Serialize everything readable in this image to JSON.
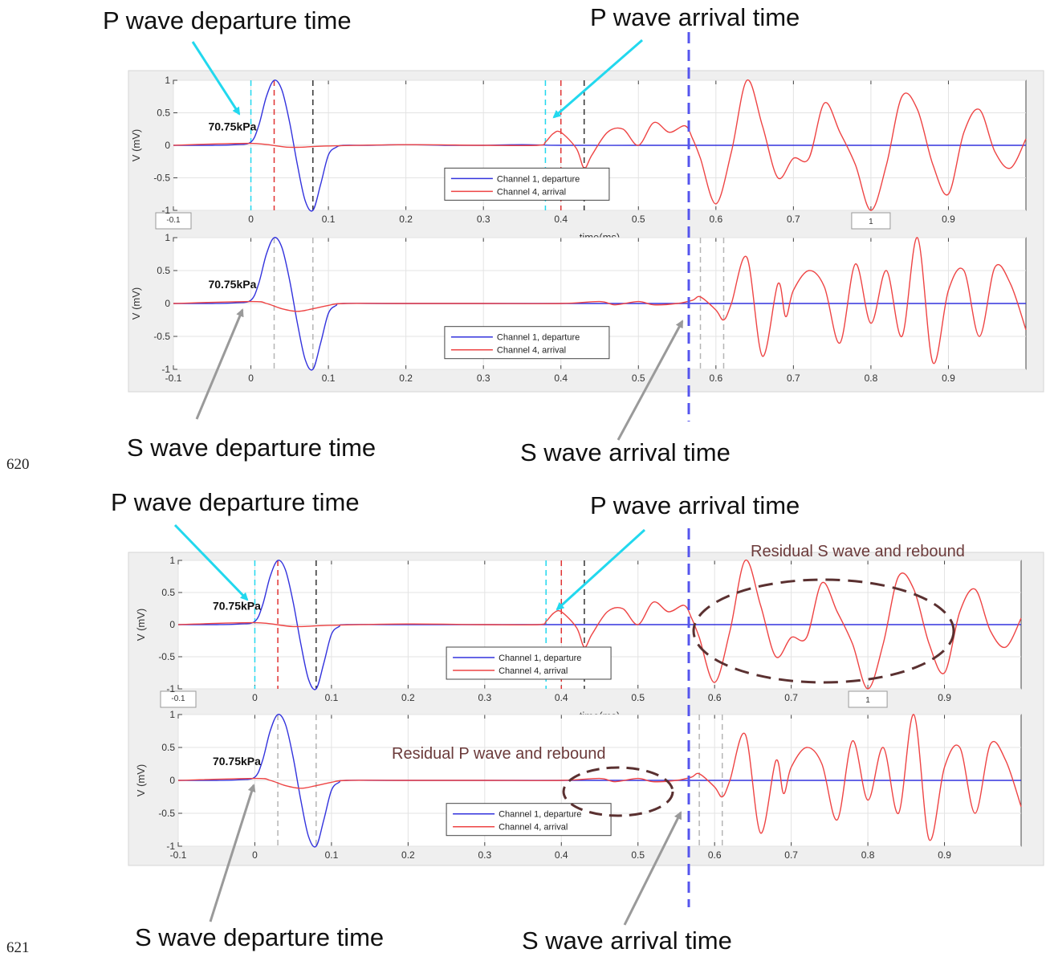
{
  "annotations": {
    "top": {
      "p_departure": "P wave departure time",
      "p_arrival": "P wave arrival time",
      "s_departure": "S wave departure time",
      "s_arrival": "S wave arrival time"
    },
    "bottom": {
      "p_departure": "P wave departure time",
      "p_arrival": "P wave arrival time",
      "s_departure": "S wave departure time",
      "s_arrival": "S wave arrival time",
      "residual_s": "Residual S wave and rebound",
      "residual_p": "Residual P wave and rebound"
    },
    "line_numbers": [
      "620",
      "621"
    ]
  },
  "colors": {
    "departure": "#3333dd",
    "arrival": "#ee4444",
    "cyan_arrow": "#22d8ee",
    "gray_arrow": "#9a9a9a",
    "vertical_marker": "#5555ee",
    "ellipse": "#5a3030"
  },
  "chart_data": [
    {
      "type": "line",
      "panel": "top-1",
      "ylabel": "V (mV)",
      "xlabel": "time(ms)",
      "pressure_label": "70.75kPa",
      "xlim": [
        -0.1,
        1.0
      ],
      "ylim": [
        -1,
        1
      ],
      "xticks": [
        "-0.1",
        "0",
        "0.1",
        "0.2",
        "0.3",
        "0.4",
        "0.5",
        "0.6",
        "0.7",
        "0.8",
        "0.9"
      ],
      "yticks": [
        "-1",
        "-0.5",
        "0",
        "0.5",
        "1"
      ],
      "boxed_ticks": [
        "-0.1",
        "1"
      ],
      "legend": [
        "Channel 1, departure",
        "Channel 4, arrival"
      ],
      "markers": {
        "cyan": [
          0.0,
          0.38
        ],
        "red": [
          0.03,
          0.4
        ],
        "black": [
          0.08,
          0.43
        ]
      },
      "series": [
        {
          "name": "Channel 1, departure",
          "x": [
            -0.1,
            -0.05,
            -0.02,
            0,
            0.01,
            0.02,
            0.03,
            0.04,
            0.05,
            0.06,
            0.07,
            0.08,
            0.09,
            0.1,
            0.11,
            0.12,
            0.15,
            0.2,
            0.25,
            0.3,
            0.35,
            0.4,
            0.5,
            0.6,
            0.7,
            0.8,
            0.9,
            1.0
          ],
          "y": [
            0,
            0,
            0.01,
            0.05,
            0.3,
            0.75,
            1.0,
            0.85,
            0.35,
            -0.3,
            -0.85,
            -1.0,
            -0.6,
            -0.15,
            -0.03,
            0.0,
            0.0,
            0.01,
            0.0,
            0.0,
            0.01,
            0,
            0,
            0,
            0,
            0,
            0,
            0
          ]
        },
        {
          "name": "Channel 4, arrival",
          "x": [
            -0.1,
            0,
            0.05,
            0.1,
            0.2,
            0.3,
            0.37,
            0.38,
            0.39,
            0.4,
            0.42,
            0.43,
            0.44,
            0.46,
            0.48,
            0.5,
            0.52,
            0.54,
            0.56,
            0.57,
            0.58,
            0.6,
            0.62,
            0.64,
            0.66,
            0.68,
            0.7,
            0.72,
            0.74,
            0.76,
            0.78,
            0.8,
            0.82,
            0.84,
            0.86,
            0.88,
            0.9,
            0.92,
            0.94,
            0.96,
            0.98,
            1.0
          ],
          "y": [
            0,
            0.03,
            -0.03,
            -0.01,
            0.01,
            0.0,
            0.0,
            0.05,
            0.18,
            0.2,
            -0.05,
            -0.35,
            -0.15,
            0.2,
            0.25,
            0.0,
            0.35,
            0.2,
            0.3,
            0.1,
            -0.2,
            -0.9,
            -0.1,
            1.0,
            0.3,
            -0.5,
            -0.2,
            -0.2,
            0.65,
            0.2,
            -0.3,
            -1.0,
            -0.3,
            0.75,
            0.55,
            -0.3,
            -0.75,
            0.2,
            0.55,
            -0.1,
            -0.35,
            0.1
          ]
        }
      ]
    },
    {
      "type": "line",
      "panel": "top-2",
      "ylabel": "V (mV)",
      "pressure_label": "70.75kPa",
      "xlim": [
        -0.1,
        1.0
      ],
      "ylim": [
        -1,
        1
      ],
      "xticks": [
        "-0.1",
        "0",
        "0.1",
        "0.2",
        "0.3",
        "0.4",
        "0.5",
        "0.6",
        "0.7",
        "0.8",
        "0.9"
      ],
      "yticks": [
        "-1",
        "-0.5",
        "0",
        "0.5",
        "1"
      ],
      "legend": [
        "Channel 1, departure",
        "Channel 4, arrival"
      ],
      "markers": {
        "gray": [
          0.03,
          0.08,
          0.58,
          0.61
        ]
      },
      "series": [
        {
          "name": "Channel 1, departure",
          "x": [
            -0.1,
            -0.05,
            -0.02,
            0,
            0.01,
            0.02,
            0.03,
            0.04,
            0.05,
            0.06,
            0.07,
            0.08,
            0.09,
            0.1,
            0.11,
            0.12,
            0.2,
            0.5,
            0.6,
            0.7,
            0.8,
            0.9,
            1.0
          ],
          "y": [
            0,
            0,
            0.01,
            0.05,
            0.3,
            0.75,
            1.0,
            0.85,
            0.35,
            -0.3,
            -0.85,
            -1.0,
            -0.6,
            -0.15,
            -0.03,
            0,
            0,
            0,
            0,
            0,
            0,
            0,
            0
          ]
        },
        {
          "name": "Channel 4, arrival",
          "x": [
            -0.1,
            0,
            0.02,
            0.04,
            0.06,
            0.08,
            0.1,
            0.12,
            0.2,
            0.3,
            0.4,
            0.45,
            0.47,
            0.5,
            0.52,
            0.55,
            0.57,
            0.58,
            0.6,
            0.61,
            0.62,
            0.64,
            0.66,
            0.68,
            0.69,
            0.7,
            0.72,
            0.74,
            0.76,
            0.78,
            0.8,
            0.82,
            0.84,
            0.86,
            0.88,
            0.9,
            0.92,
            0.94,
            0.96,
            0.98,
            1.0
          ],
          "y": [
            0,
            0.03,
            0.0,
            -0.08,
            -0.12,
            -0.08,
            -0.03,
            0,
            0,
            0,
            0,
            0.03,
            -0.02,
            0.03,
            -0.02,
            0.0,
            0.05,
            0.1,
            -0.1,
            -0.25,
            0.0,
            0.7,
            -0.8,
            0.3,
            -0.2,
            0.2,
            0.5,
            0.25,
            -0.6,
            0.6,
            -0.3,
            0.5,
            -0.5,
            1.0,
            -0.9,
            0.2,
            0.5,
            -0.5,
            0.55,
            0.3,
            -0.4
          ]
        }
      ]
    },
    {
      "type": "line",
      "panel": "bottom-1",
      "ylabel": "V (mV)",
      "xlabel": "time(ms)",
      "pressure_label": "70.75kPa",
      "xlim": [
        -0.1,
        1.0
      ],
      "ylim": [
        -1,
        1
      ],
      "xticks": [
        "-0.1",
        "0",
        "0.1",
        "0.2",
        "0.3",
        "0.4",
        "0.5",
        "0.6",
        "0.7",
        "0.8",
        "0.9"
      ],
      "yticks": [
        "-1",
        "-0.5",
        "0",
        "0.5",
        "1"
      ],
      "boxed_ticks": [
        "-0.1",
        "1"
      ],
      "legend": [
        "Channel 1, departure",
        "Channel 4, arrival"
      ],
      "markers": {
        "cyan": [
          0.0,
          0.38
        ],
        "red": [
          0.03,
          0.4
        ],
        "black": [
          0.08,
          0.43
        ]
      },
      "series": [
        {
          "name": "Channel 1, departure",
          "x": [
            -0.1,
            -0.05,
            -0.02,
            0,
            0.01,
            0.02,
            0.03,
            0.04,
            0.05,
            0.06,
            0.07,
            0.08,
            0.09,
            0.1,
            0.11,
            0.12,
            0.2,
            0.5,
            0.6,
            0.7,
            0.8,
            0.9,
            1.0
          ],
          "y": [
            0,
            0,
            0.01,
            0.05,
            0.3,
            0.75,
            1.0,
            0.85,
            0.35,
            -0.3,
            -0.85,
            -1.0,
            -0.6,
            -0.15,
            -0.03,
            0,
            0,
            0,
            0,
            0,
            0,
            0,
            0
          ]
        },
        {
          "name": "Channel 4, arrival",
          "x": [
            -0.1,
            0,
            0.05,
            0.1,
            0.2,
            0.3,
            0.37,
            0.38,
            0.39,
            0.4,
            0.42,
            0.43,
            0.44,
            0.46,
            0.48,
            0.5,
            0.52,
            0.54,
            0.56,
            0.57,
            0.58,
            0.6,
            0.62,
            0.64,
            0.66,
            0.68,
            0.7,
            0.72,
            0.74,
            0.76,
            0.78,
            0.8,
            0.82,
            0.84,
            0.86,
            0.88,
            0.9,
            0.92,
            0.94,
            0.96,
            0.98,
            1.0
          ],
          "y": [
            0,
            0.03,
            -0.03,
            -0.01,
            0.01,
            0.0,
            0.0,
            0.05,
            0.18,
            0.2,
            -0.05,
            -0.35,
            -0.15,
            0.2,
            0.25,
            0.0,
            0.35,
            0.2,
            0.3,
            0.1,
            -0.2,
            -0.9,
            -0.1,
            1.0,
            0.3,
            -0.5,
            -0.2,
            -0.2,
            0.65,
            0.2,
            -0.3,
            -1.0,
            -0.3,
            0.75,
            0.55,
            -0.3,
            -0.75,
            0.2,
            0.55,
            -0.1,
            -0.35,
            0.1
          ]
        }
      ]
    },
    {
      "type": "line",
      "panel": "bottom-2",
      "ylabel": "V (mV)",
      "pressure_label": "70.75kPa",
      "xlim": [
        -0.1,
        1.0
      ],
      "ylim": [
        -1,
        1
      ],
      "xticks": [
        "-0.1",
        "0",
        "0.1",
        "0.2",
        "0.3",
        "0.4",
        "0.5",
        "0.6",
        "0.7",
        "0.8",
        "0.9"
      ],
      "yticks": [
        "-1",
        "-0.5",
        "0",
        "0.5",
        "1"
      ],
      "legend": [
        "Channel 1, departure",
        "Channel 4, arrival"
      ],
      "markers": {
        "gray": [
          0.03,
          0.08,
          0.58,
          0.61
        ]
      },
      "series": [
        {
          "name": "Channel 1, departure",
          "x": [
            -0.1,
            -0.05,
            -0.02,
            0,
            0.01,
            0.02,
            0.03,
            0.04,
            0.05,
            0.06,
            0.07,
            0.08,
            0.09,
            0.1,
            0.11,
            0.12,
            0.2,
            0.5,
            0.6,
            0.7,
            0.8,
            0.9,
            1.0
          ],
          "y": [
            0,
            0,
            0.01,
            0.05,
            0.3,
            0.75,
            1.0,
            0.85,
            0.35,
            -0.3,
            -0.85,
            -1.0,
            -0.6,
            -0.15,
            -0.03,
            0,
            0,
            0,
            0,
            0,
            0,
            0,
            0
          ]
        },
        {
          "name": "Channel 4, arrival",
          "x": [
            -0.1,
            0,
            0.02,
            0.04,
            0.06,
            0.08,
            0.1,
            0.12,
            0.2,
            0.3,
            0.4,
            0.45,
            0.47,
            0.5,
            0.52,
            0.55,
            0.57,
            0.58,
            0.6,
            0.61,
            0.62,
            0.64,
            0.66,
            0.68,
            0.69,
            0.7,
            0.72,
            0.74,
            0.76,
            0.78,
            0.8,
            0.82,
            0.84,
            0.86,
            0.88,
            0.9,
            0.92,
            0.94,
            0.96,
            0.98,
            1.0
          ],
          "y": [
            0,
            0.03,
            0.0,
            -0.08,
            -0.12,
            -0.08,
            -0.03,
            0,
            0,
            0,
            0,
            0.03,
            -0.02,
            0.03,
            -0.02,
            0.0,
            0.05,
            0.1,
            -0.1,
            -0.25,
            0.0,
            0.7,
            -0.8,
            0.3,
            -0.2,
            0.2,
            0.5,
            0.25,
            -0.6,
            0.6,
            -0.3,
            0.5,
            -0.5,
            1.0,
            -0.9,
            0.2,
            0.5,
            -0.5,
            0.55,
            0.3,
            -0.4
          ]
        }
      ]
    }
  ]
}
